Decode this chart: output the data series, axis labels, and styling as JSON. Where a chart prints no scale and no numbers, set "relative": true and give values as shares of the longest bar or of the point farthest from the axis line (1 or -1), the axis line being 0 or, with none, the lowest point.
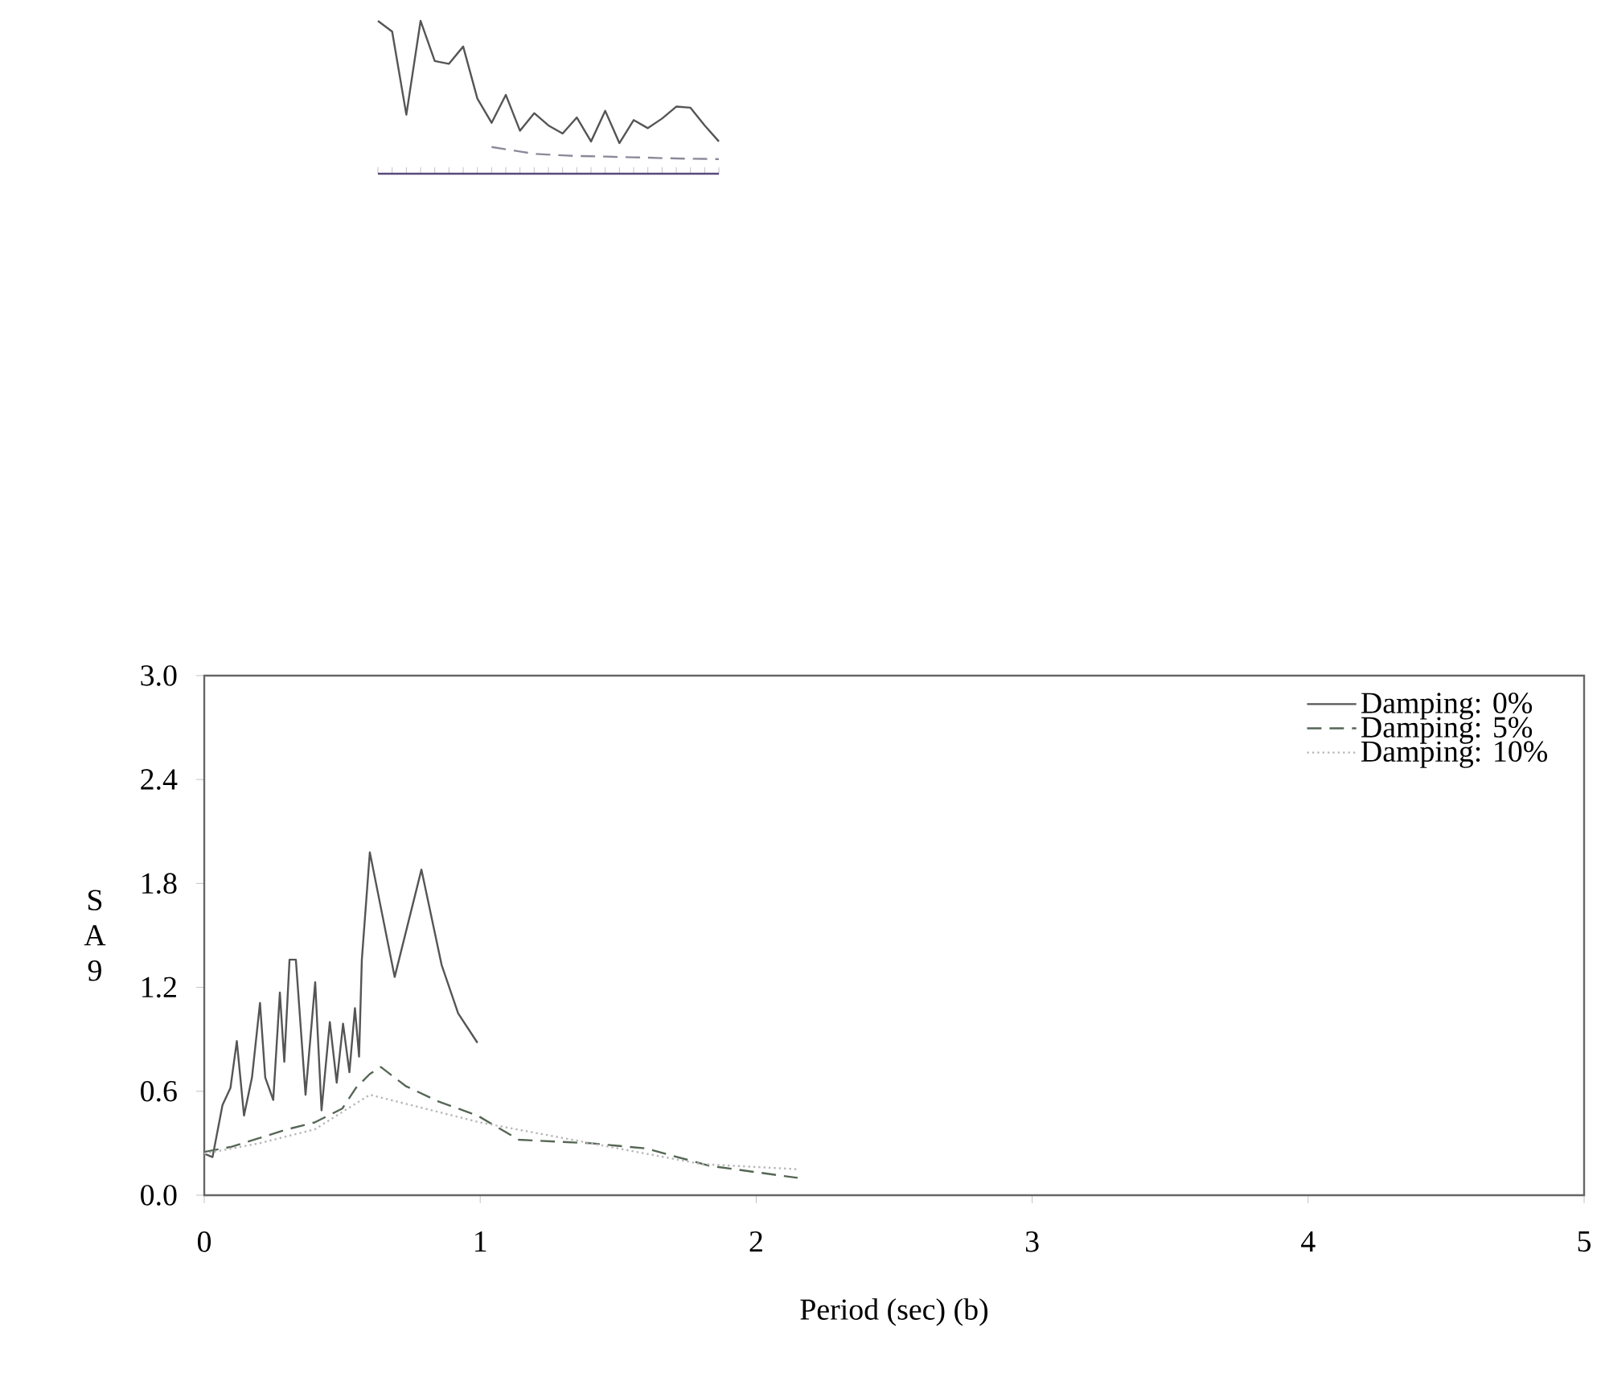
{
  "chart_data": [
    {
      "type": "line",
      "relative": true,
      "categories": [
        null,
        null,
        null,
        null,
        null,
        null,
        null,
        null,
        null,
        null,
        null,
        null,
        null,
        null,
        null,
        null,
        null,
        null,
        null,
        null,
        null,
        null,
        null,
        null,
        null
      ],
      "series": [
        {
          "color": "#555555",
          "line_style": "solid",
          "values": [
            1.0,
            0.93,
            0.386,
            1.0,
            0.737,
            0.719,
            0.832,
            0.491,
            0.333,
            0.516,
            0.281,
            0.396,
            0.316,
            0.263,
            0.368,
            0.211,
            0.411,
            0.2,
            0.351,
            0.298,
            0.361,
            0.439,
            0.432,
            0.316,
            0.211
          ]
        },
        {
          "color": "#8a8a9a",
          "line_style": "dashed",
          "values": [
            null,
            null,
            null,
            null,
            null,
            null,
            null,
            null,
            0.175,
            0.16,
            0.145,
            0.13,
            0.125,
            0.12,
            0.116,
            0.114,
            0.112,
            0.109,
            0.107,
            0.105,
            0.102,
            0.1,
            0.098,
            0.097,
            0.095
          ]
        }
      ]
    },
    {
      "type": "line",
      "xlabel": "Period (sec) (b)",
      "ylabel": "S A 9",
      "xlim": [
        0,
        5
      ],
      "xticks": [
        0,
        1,
        2,
        3,
        4,
        5
      ],
      "ylim": [
        0,
        3.0
      ],
      "yticks": [
        {
          "value": 0,
          "label": "0.0"
        },
        {
          "value": 0.6,
          "label": "0.6"
        },
        {
          "value": 1.2,
          "label": "1.2"
        },
        {
          "value": 1.8,
          "label": "1.8"
        },
        {
          "value": 2.4,
          "label": "2.4"
        },
        {
          "value": 3.0,
          "label": "3.0"
        }
      ],
      "legend": "top right",
      "series": [
        {
          "name": "Damping: 0%",
          "color": "#555555",
          "line_style": "solid",
          "x": [
            0,
            0.03,
            0.066,
            0.095,
            0.118,
            0.144,
            0.173,
            0.202,
            0.221,
            0.25,
            0.274,
            0.29,
            0.309,
            0.332,
            0.367,
            0.402,
            0.425,
            0.455,
            0.48,
            0.503,
            0.526,
            0.546,
            0.561,
            0.571,
            0.6,
            0.69,
            0.787,
            0.86,
            0.92,
            0.99
          ],
          "values": [
            0.24,
            0.22,
            0.52,
            0.62,
            0.89,
            0.46,
            0.68,
            1.11,
            0.68,
            0.55,
            1.17,
            0.77,
            1.36,
            1.36,
            0.58,
            1.23,
            0.49,
            1.0,
            0.65,
            0.99,
            0.71,
            1.08,
            0.8,
            1.36,
            1.98,
            1.26,
            1.88,
            1.33,
            1.05,
            0.88
          ]
        },
        {
          "name": "Damping: 5%",
          "color": "#556655",
          "line_style": "dashed",
          "x": [
            0,
            0.1,
            0.2,
            0.3,
            0.4,
            0.5,
            0.55,
            0.6,
            0.64,
            0.73,
            0.85,
            0.99,
            1.14,
            1.4,
            1.6,
            1.83,
            2.15
          ],
          "values": [
            0.25,
            0.28,
            0.33,
            0.38,
            0.42,
            0.5,
            0.62,
            0.7,
            0.74,
            0.63,
            0.54,
            0.46,
            0.32,
            0.3,
            0.27,
            0.17,
            0.1
          ]
        },
        {
          "name": "Damping: 10%",
          "color": "#b8b8b8",
          "line_style": "dotted",
          "x": [
            0,
            0.2,
            0.4,
            0.6,
            0.8,
            1.0,
            1.4,
            1.8,
            2.15
          ],
          "values": [
            0.24,
            0.3,
            0.38,
            0.58,
            0.5,
            0.42,
            0.3,
            0.18,
            0.15
          ]
        }
      ]
    }
  ]
}
